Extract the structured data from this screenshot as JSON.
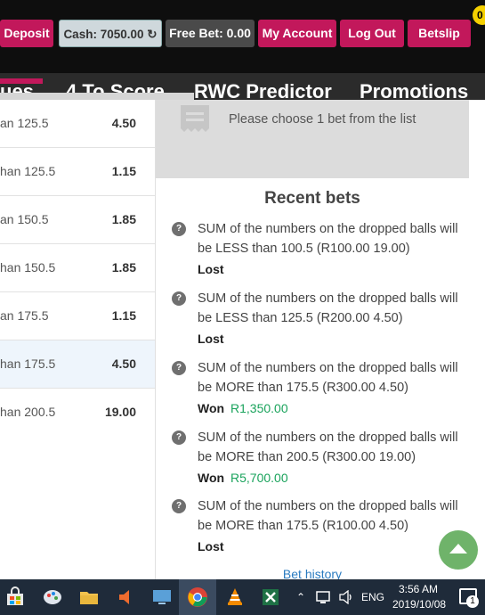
{
  "header": {
    "deposit_label": "Deposit",
    "cash_label": "Cash: 7050.00 ↻",
    "free_bet_label": "Free Bet: 0.00",
    "my_account_label": "My Account",
    "logout_label": "Log Out",
    "betslip_label": "Betslip",
    "badge": "0"
  },
  "nav": {
    "items": [
      "ues",
      "4 To Score",
      "RWC Predictor",
      "Promotions"
    ]
  },
  "markets": [
    {
      "label": "an 125.5",
      "odds": "4.50"
    },
    {
      "label": "han 125.5",
      "odds": "1.15"
    },
    {
      "label": "an 150.5",
      "odds": "1.85"
    },
    {
      "label": "han 150.5",
      "odds": "1.85"
    },
    {
      "label": "an 175.5",
      "odds": "1.15"
    },
    {
      "label": "han 175.5",
      "odds": "4.50"
    },
    {
      "label": "han 200.5",
      "odds": "19.00"
    }
  ],
  "betslip": {
    "message": "Please choose 1 bet from the list",
    "recent_title": "Recent bets",
    "recent_bets": [
      {
        "text": "SUM of the numbers on the dropped balls will be LESS than 100.5 (R100.00 19.00)",
        "status": "Lost",
        "amount": ""
      },
      {
        "text": "SUM of the numbers on the dropped balls will be LESS than 125.5 (R200.00 4.50)",
        "status": "Lost",
        "amount": ""
      },
      {
        "text": "SUM of the numbers on the dropped balls will be MORE than 175.5 (R300.00 4.50)",
        "status": "Won",
        "amount": "R1,350.00"
      },
      {
        "text": "SUM of the numbers on the dropped balls will be MORE than 200.5 (R300.00 19.00)",
        "status": "Won",
        "amount": "R5,700.00"
      },
      {
        "text": "SUM of the numbers on the dropped balls will be MORE than 175.5 (R100.00 4.50)",
        "status": "Lost",
        "amount": ""
      }
    ],
    "bet_history_label": "Bet history"
  },
  "taskbar": {
    "language": "ENG",
    "time": "3:56 AM",
    "date": "2019/10/08",
    "notification_count": "1"
  },
  "colors": {
    "brand_pink": "#c2185b",
    "win_green": "#1aa35c",
    "scroll_top_green": "#6fb36a"
  }
}
